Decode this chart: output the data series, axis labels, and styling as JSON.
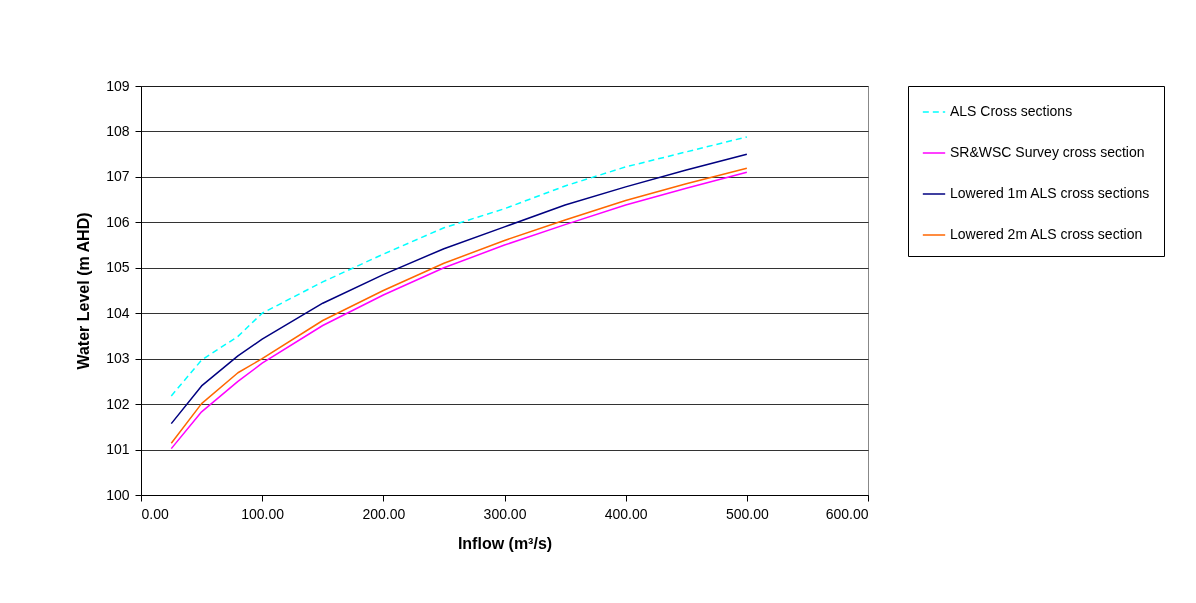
{
  "chart_data": {
    "type": "line",
    "xlabel": "Inflow (m³/s)",
    "ylabel": "Water Level (m AHD)",
    "x": [
      25,
      50,
      80,
      100,
      150,
      200,
      250,
      300,
      350,
      400,
      450,
      500
    ],
    "series": [
      {
        "name": "ALS Cross sections",
        "color": "#00ffff",
        "line_style": "dashed",
        "values": [
          102.18,
          102.97,
          103.49,
          104.0,
          104.69,
          105.3,
          105.88,
          106.3,
          106.8,
          107.22,
          107.55,
          107.88
        ]
      },
      {
        "name": "SR&WSC Survey cross section",
        "color": "#ff00ff",
        "line_style": "solid",
        "values": [
          101.02,
          101.83,
          102.5,
          102.9,
          103.73,
          104.4,
          105.0,
          105.5,
          105.95,
          106.38,
          106.75,
          107.1
        ]
      },
      {
        "name": "Lowered 1m ALS cross sections",
        "color": "#000080",
        "line_style": "solid",
        "values": [
          101.57,
          102.4,
          103.06,
          103.43,
          104.22,
          104.85,
          105.42,
          105.9,
          106.38,
          106.78,
          107.15,
          107.5
        ]
      },
      {
        "name": "Lowered 2m ALS cross section",
        "color": "#ff6600",
        "line_style": "solid",
        "values": [
          101.14,
          102.01,
          102.69,
          103.0,
          103.84,
          104.5,
          105.1,
          105.6,
          106.05,
          106.48,
          106.85,
          107.19
        ]
      }
    ],
    "xlim": [
      0,
      600
    ],
    "xticks": [
      {
        "value": 0,
        "label": "0.00"
      },
      {
        "value": 100,
        "label": "100.00"
      },
      {
        "value": 200,
        "label": "200.00"
      },
      {
        "value": 300,
        "label": "300.00"
      },
      {
        "value": 400,
        "label": "400.00"
      },
      {
        "value": 500,
        "label": "500.00"
      },
      {
        "value": 600,
        "label": "600.00"
      }
    ],
    "ylim": [
      100,
      109
    ],
    "yticks": [
      100,
      101,
      102,
      103,
      104,
      105,
      106,
      107,
      108,
      109
    ],
    "grid": "y",
    "legend": "right",
    "marker": "none"
  }
}
